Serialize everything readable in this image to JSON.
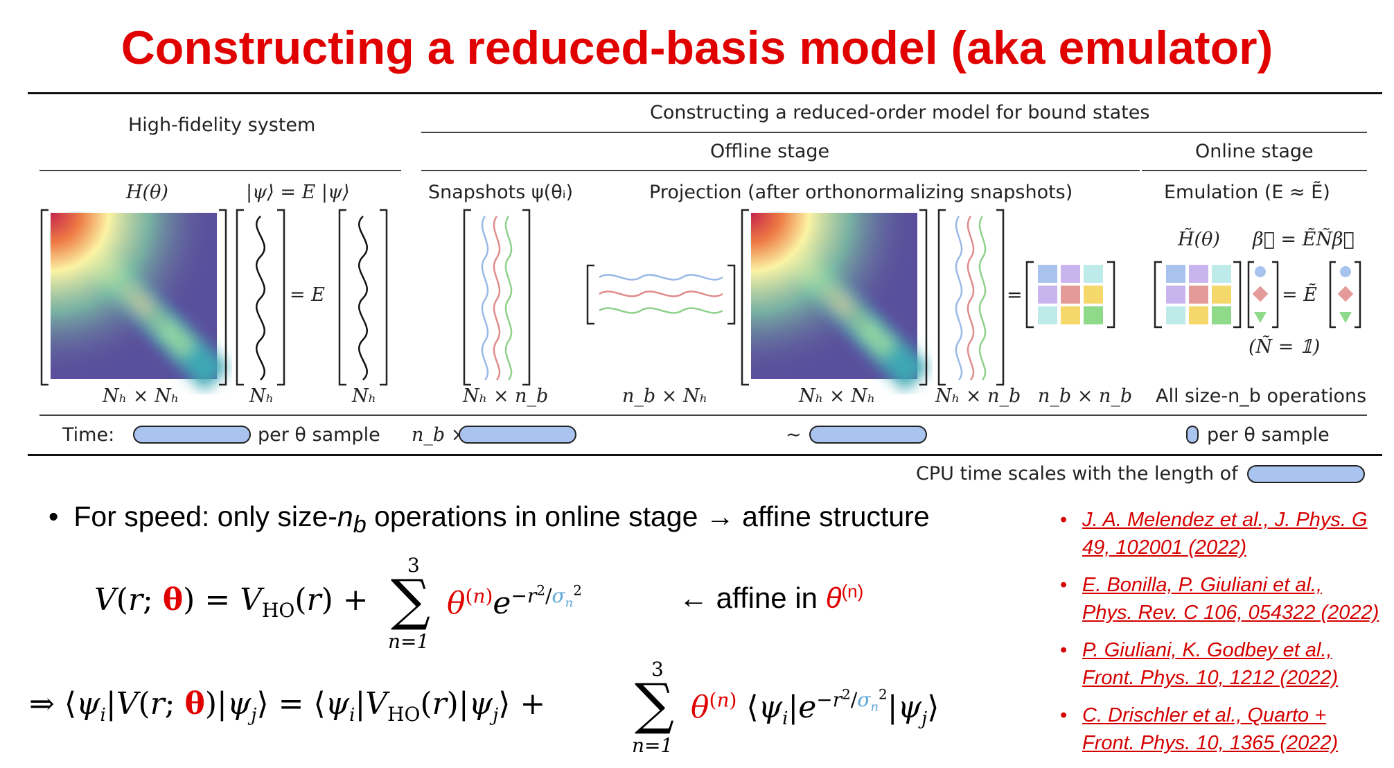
{
  "title": "Constructing a reduced-basis model (aka emulator)",
  "table": {
    "hf_header": "High-fidelity system",
    "rom_header": "Constructing a reduced-order model for bound states",
    "offline_header": "Offline stage",
    "online_header": "Online stage",
    "hf_H": "H(θ)",
    "hf_psi": "|ψ⟩  = E  |ψ⟩",
    "snapshots": "Snapshots ψ(θᵢ)",
    "projection": "Projection (after orthonormalizing snapshots)",
    "emulation": "Emulation (E ≈ Ẽ)",
    "eq_E": "= E",
    "online_eq_left": "H̃(θ)",
    "online_eq_right": "β⃗  = ẼÑβ⃗",
    "online_eq_mid": "= Ẽ",
    "online_N": "(Ñ = 𝟙)",
    "dims": {
      "d1": "Nₕ × Nₕ",
      "d2": "Nₕ",
      "d3": "Nₕ",
      "d4": "Nₕ × n_b",
      "d5": "n_b × Nₕ",
      "d6": "Nₕ × Nₕ",
      "d7": "Nₕ × n_b",
      "d8": "n_b × n_b",
      "d9": "All size-n_b operations"
    },
    "time_label": "Time:",
    "per_sample_1": "per θ sample",
    "nb_times": "n_b ×",
    "tilde": "∼",
    "per_sample_2": "per θ sample",
    "cpu_note": "CPU time scales with the length of"
  },
  "bullet": {
    "pre": "For speed: only size-",
    "nb": "n",
    "sub": "b",
    "post": " operations in online stage → affine structure"
  },
  "affine_note": "← affine in ",
  "affine_theta": "θ",
  "affine_sup": "(n)",
  "references": [
    {
      "line1": "J. A. Melendez et al., J. Phys. G",
      "line2": "49, 102001 (2022)"
    },
    {
      "line1": "E. Bonilla, P. Giuliani et al.,",
      "line2": "Phys. Rev. C 106, 054322 (2022)"
    },
    {
      "line1": "P. Giuliani, K. Godbey et al.,",
      "line2": "Front. Phys. 10, 1212 (2022)"
    },
    {
      "line1": "C. Drischler et al., Quarto +",
      "line2": "Front. Phys. 10, 1365 (2022)"
    }
  ],
  "colors": {
    "title": "#e00000",
    "pill": "#a9c4ee",
    "ref": "#d40000",
    "sigma": "#5aa6d6"
  }
}
